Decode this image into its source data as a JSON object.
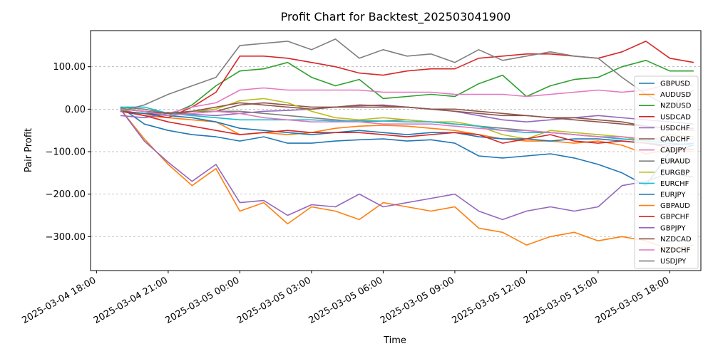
{
  "chart_data": {
    "type": "line",
    "title": "Profit Chart for Backtest_202503041900",
    "xlabel": "Time",
    "ylabel": "Pair Profit",
    "xlim_hours": [
      -1.25,
      24.3
    ],
    "ylim": [
      -380,
      185
    ],
    "y_ticks": [
      {
        "value": 100,
        "label": "100.00"
      },
      {
        "value": 0,
        "label": "0.00"
      },
      {
        "value": -100,
        "label": "−100.00"
      },
      {
        "value": -200,
        "label": "−200.00"
      },
      {
        "value": -300,
        "label": "−300.00"
      }
    ],
    "x_ticks": [
      {
        "hour": -1,
        "label": "2025-03-04 18:00"
      },
      {
        "hour": 2,
        "label": "2025-03-04 21:00"
      },
      {
        "hour": 5,
        "label": "2025-03-05 00:00"
      },
      {
        "hour": 8,
        "label": "2025-03-05 03:00"
      },
      {
        "hour": 11,
        "label": "2025-03-05 06:00"
      },
      {
        "hour": 14,
        "label": "2025-03-05 09:00"
      },
      {
        "hour": 17,
        "label": "2025-03-05 12:00"
      },
      {
        "hour": 20,
        "label": "2025-03-05 15:00"
      },
      {
        "hour": 23,
        "label": "2025-03-05 18:00"
      }
    ],
    "grid": "horizontal-dashed",
    "legend_position": "right",
    "series": [
      {
        "name": "GBPUSD",
        "color": "#1f77b4",
        "x": [
          0,
          1,
          2,
          3,
          4,
          5,
          6,
          7,
          8,
          9,
          10,
          11,
          12,
          13,
          14,
          15,
          16,
          17,
          18,
          19,
          20,
          21,
          22,
          23,
          24
        ],
        "values": [
          5,
          -35,
          -50,
          -60,
          -65,
          -75,
          -65,
          -80,
          -80,
          -75,
          -72,
          -70,
          -75,
          -72,
          -80,
          -110,
          -115,
          -110,
          -105,
          -115,
          -130,
          -150,
          -180,
          -100,
          -85
        ]
      },
      {
        "name": "AUDUSD",
        "color": "#ff7f0e",
        "x": [
          0,
          1,
          2,
          3,
          4,
          5,
          6,
          7,
          8,
          9,
          10,
          11,
          12,
          13,
          14,
          15,
          16,
          17,
          18,
          19,
          20,
          21,
          22,
          23,
          24
        ],
        "values": [
          0,
          -15,
          -20,
          -25,
          -30,
          -60,
          -55,
          -60,
          -55,
          -45,
          -40,
          -38,
          -40,
          -45,
          -50,
          -60,
          -70,
          -75,
          -75,
          -80,
          -75,
          -85,
          -105,
          -95,
          -100
        ]
      },
      {
        "name": "NZDUSD",
        "color": "#2ca02c",
        "x": [
          0,
          1,
          2,
          3,
          4,
          5,
          6,
          7,
          8,
          9,
          10,
          11,
          12,
          13,
          14,
          15,
          16,
          17,
          18,
          19,
          20,
          21,
          22,
          23,
          24
        ],
        "values": [
          2,
          -5,
          -15,
          10,
          55,
          90,
          95,
          110,
          75,
          55,
          70,
          25,
          30,
          35,
          30,
          60,
          80,
          30,
          55,
          70,
          75,
          100,
          115,
          90,
          90
        ]
      },
      {
        "name": "USDCAD",
        "color": "#d62728",
        "x": [
          0,
          1,
          2,
          3,
          4,
          5,
          6,
          7,
          8,
          9,
          10,
          11,
          12,
          13,
          14,
          15,
          16,
          17,
          18,
          19,
          20,
          21,
          22,
          23,
          24
        ],
        "values": [
          -5,
          -10,
          -20,
          5,
          40,
          125,
          125,
          120,
          110,
          100,
          85,
          80,
          90,
          95,
          95,
          120,
          125,
          130,
          130,
          125,
          120,
          135,
          160,
          120,
          110
        ]
      },
      {
        "name": "USDCHF",
        "color": "#9467bd",
        "x": [
          0,
          1,
          2,
          3,
          4,
          5,
          6,
          7,
          8,
          9,
          10,
          11,
          12,
          13,
          14,
          15,
          16,
          17,
          18,
          19,
          20,
          21,
          22,
          23,
          24
        ],
        "values": [
          -15,
          -20,
          -10,
          -12,
          -15,
          -10,
          -5,
          -3,
          0,
          5,
          8,
          10,
          5,
          0,
          -5,
          -15,
          -25,
          -30,
          -25,
          -20,
          -15,
          -20,
          -25,
          -30,
          -35
        ]
      },
      {
        "name": "CADCHF",
        "color": "#8c564b",
        "x": [
          0,
          1,
          2,
          3,
          4,
          5,
          6,
          7,
          8,
          9,
          10,
          11,
          12,
          13,
          14,
          15,
          16,
          17,
          18,
          19,
          20,
          21,
          22,
          23,
          24
        ],
        "values": [
          -5,
          -10,
          -8,
          -10,
          -5,
          10,
          15,
          10,
          5,
          5,
          5,
          5,
          5,
          0,
          0,
          -5,
          -10,
          -15,
          -20,
          -20,
          -25,
          -30,
          -40,
          -45,
          -50
        ]
      },
      {
        "name": "CADJPY",
        "color": "#e377c2",
        "x": [
          0,
          1,
          2,
          3,
          4,
          5,
          6,
          7,
          8,
          9,
          10,
          11,
          12,
          13,
          14,
          15,
          16,
          17,
          18,
          19,
          20,
          21,
          22,
          23,
          24
        ],
        "values": [
          0,
          -5,
          -10,
          5,
          15,
          45,
          50,
          45,
          45,
          45,
          45,
          40,
          40,
          40,
          35,
          35,
          35,
          30,
          35,
          40,
          45,
          40,
          45,
          60,
          55
        ]
      },
      {
        "name": "EURAUD",
        "color": "#7f7f7f",
        "x": [
          0,
          1,
          2,
          3,
          4,
          5,
          6,
          7,
          8,
          9,
          10,
          11,
          12,
          13,
          14,
          15,
          16,
          17,
          18,
          19,
          20,
          21,
          22,
          23,
          24
        ],
        "values": [
          5,
          0,
          -10,
          -5,
          -5,
          -5,
          -10,
          -15,
          -20,
          -25,
          -30,
          -28,
          -25,
          -30,
          -35,
          -40,
          -45,
          -50,
          -55,
          -60,
          -65,
          -70,
          -75,
          -80,
          -85
        ]
      },
      {
        "name": "EURGBP",
        "color": "#bcbd22",
        "x": [
          0,
          1,
          2,
          3,
          4,
          5,
          6,
          7,
          8,
          9,
          10,
          11,
          12,
          13,
          14,
          15,
          16,
          17,
          18,
          19,
          20,
          21,
          22,
          23,
          24
        ],
        "values": [
          0,
          -5,
          -10,
          -5,
          0,
          20,
          25,
          15,
          -5,
          -20,
          -25,
          -20,
          -25,
          -30,
          -30,
          -40,
          -60,
          -70,
          -50,
          -55,
          -60,
          -65,
          -75,
          -60,
          -65
        ]
      },
      {
        "name": "EURCHF",
        "color": "#17becf",
        "x": [
          0,
          1,
          2,
          3,
          4,
          5,
          6,
          7,
          8,
          9,
          10,
          11,
          12,
          13,
          14,
          15,
          16,
          17,
          18,
          19,
          20,
          21,
          22,
          23,
          24
        ],
        "values": [
          5,
          5,
          -10,
          -15,
          -20,
          -25,
          -25,
          -25,
          -25,
          -28,
          -27,
          -28,
          -30,
          -30,
          -35,
          -40,
          -50,
          -55,
          -55,
          -60,
          -65,
          -70,
          -75,
          -80,
          -85
        ]
      },
      {
        "name": "EURJPY",
        "color": "#1f77b4",
        "x": [
          0,
          1,
          2,
          3,
          4,
          5,
          6,
          7,
          8,
          9,
          10,
          11,
          12,
          13,
          14,
          15,
          16,
          17,
          18,
          19,
          20,
          21,
          22,
          23,
          24
        ],
        "values": [
          -5,
          -10,
          -15,
          -20,
          -30,
          -45,
          -50,
          -55,
          -60,
          -55,
          -50,
          -55,
          -60,
          -55,
          -55,
          -65,
          -70,
          -70,
          -75,
          -70,
          -70,
          -75,
          -80,
          -85,
          -80
        ]
      },
      {
        "name": "GBPAUD",
        "color": "#ff7f0e",
        "x": [
          0,
          1,
          2,
          3,
          4,
          5,
          6,
          7,
          8,
          9,
          10,
          11,
          12,
          13,
          14,
          15,
          16,
          17,
          18,
          19,
          20,
          21,
          22,
          23,
          24
        ],
        "values": [
          0,
          -70,
          -130,
          -180,
          -140,
          -240,
          -220,
          -270,
          -230,
          -240,
          -260,
          -220,
          -230,
          -240,
          -230,
          -280,
          -290,
          -320,
          -300,
          -290,
          -310,
          -300,
          -310,
          -330,
          -320
        ]
      },
      {
        "name": "GBPCHF",
        "color": "#d62728",
        "x": [
          0,
          1,
          2,
          3,
          4,
          5,
          6,
          7,
          8,
          9,
          10,
          11,
          12,
          13,
          14,
          15,
          16,
          17,
          18,
          19,
          20,
          21,
          22,
          23,
          24
        ],
        "values": [
          -5,
          -15,
          -30,
          -40,
          -50,
          -60,
          -55,
          -50,
          -55,
          -55,
          -55,
          -60,
          -65,
          -60,
          -55,
          -60,
          -80,
          -70,
          -60,
          -75,
          -80,
          -75,
          -80,
          -90,
          -95
        ]
      },
      {
        "name": "GBPJPY",
        "color": "#9467bd",
        "x": [
          0,
          1,
          2,
          3,
          4,
          5,
          6,
          7,
          8,
          9,
          10,
          11,
          12,
          13,
          14,
          15,
          16,
          17,
          18,
          19,
          20,
          21,
          22,
          23,
          24
        ],
        "values": [
          0,
          -75,
          -125,
          -170,
          -130,
          -220,
          -215,
          -250,
          -225,
          -230,
          -200,
          -230,
          -220,
          -210,
          -200,
          -240,
          -260,
          -240,
          -230,
          -240,
          -230,
          -180,
          -170,
          -150,
          -160
        ]
      },
      {
        "name": "NZDCAD",
        "color": "#8c564b",
        "x": [
          0,
          1,
          2,
          3,
          4,
          5,
          6,
          7,
          8,
          9,
          10,
          11,
          12,
          13,
          14,
          15,
          16,
          17,
          18,
          19,
          20,
          21,
          22,
          23,
          24
        ],
        "values": [
          0,
          -5,
          -10,
          -5,
          5,
          15,
          10,
          5,
          0,
          5,
          10,
          8,
          5,
          0,
          -5,
          -10,
          -15,
          -15,
          -20,
          -25,
          -30,
          -35,
          -40,
          -45,
          -45
        ]
      },
      {
        "name": "NZDCHF",
        "color": "#e377c2",
        "x": [
          0,
          1,
          2,
          3,
          4,
          5,
          6,
          7,
          8,
          9,
          10,
          11,
          12,
          13,
          14,
          15,
          16,
          17,
          18,
          19,
          20,
          21,
          22,
          23,
          24
        ],
        "values": [
          0,
          -5,
          -15,
          -10,
          -5,
          -10,
          -20,
          -25,
          -30,
          -30,
          -30,
          -35,
          -35,
          -35,
          -40,
          -45,
          -50,
          -50,
          -55,
          -60,
          -65,
          -65,
          -70,
          -75,
          -70
        ]
      },
      {
        "name": "USDJPY",
        "color": "#7f7f7f",
        "x": [
          0,
          1,
          2,
          3,
          4,
          5,
          6,
          7,
          8,
          9,
          10,
          11,
          12,
          13,
          14,
          15,
          16,
          17,
          18,
          19,
          20,
          21,
          22,
          23,
          24
        ],
        "values": [
          -5,
          10,
          35,
          55,
          75,
          150,
          155,
          160,
          140,
          165,
          120,
          140,
          125,
          130,
          110,
          140,
          115,
          125,
          135,
          125,
          120,
          75,
          35,
          5,
          45
        ]
      }
    ]
  }
}
